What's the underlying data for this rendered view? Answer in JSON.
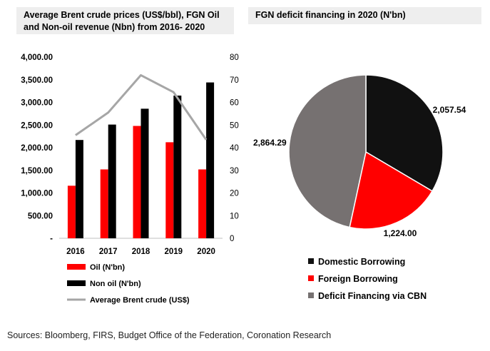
{
  "chart_data": [
    {
      "type": "bar",
      "title": "Average Brent crude prices (US$/bbl), FGN Oil and Non-oil revenue (Nbn) from 2016- 2020",
      "categories": [
        "2016",
        "2017",
        "2018",
        "2019",
        "2020"
      ],
      "series": [
        {
          "name": "Oil (N'bn)",
          "type": "bar",
          "axis": "left",
          "color": "#ff0000",
          "values": [
            1160,
            1520,
            2480,
            2120,
            1520
          ]
        },
        {
          "name": "Non oil (N'bn)",
          "type": "bar",
          "axis": "left",
          "color": "#000000",
          "values": [
            2170,
            2510,
            2860,
            3150,
            3440
          ]
        },
        {
          "name": "Average Brent crude (US$)",
          "type": "line",
          "axis": "right",
          "color": "#a6a6a6",
          "values": [
            45.5,
            55.5,
            72,
            64.5,
            43.5
          ]
        }
      ],
      "ylim": [
        0,
        4000
      ],
      "y_ticks": [
        "-",
        "500.00",
        "1,000.00",
        "1,500.00",
        "2,000.00",
        "2,500.00",
        "3,000.00",
        "3,500.00",
        "4,000.00"
      ],
      "y2lim": [
        0,
        80
      ],
      "y2_ticks": [
        "0",
        "10",
        "20",
        "30",
        "40",
        "50",
        "60",
        "70",
        "80"
      ],
      "legend_position": "bottom"
    },
    {
      "type": "pie",
      "title": "FGN deficit financing in 2020 (N'bn)",
      "slices": [
        {
          "label": "Domestic Borrowing",
          "value": 2057.54,
          "value_label": "2,057.54",
          "color": "#111111"
        },
        {
          "label": "Foreign Borrowing",
          "value": 1224.0,
          "value_label": "1,224.00",
          "color": "#ff0000"
        },
        {
          "label": "Deficit Financing via CBN",
          "value": 2864.29,
          "value_label": "2,864.29",
          "color": "#767171"
        }
      ],
      "legend_position": "bottom"
    }
  ],
  "source": "Sources: Bloomberg, FIRS, Budget Office of the Federation, Coronation Research"
}
